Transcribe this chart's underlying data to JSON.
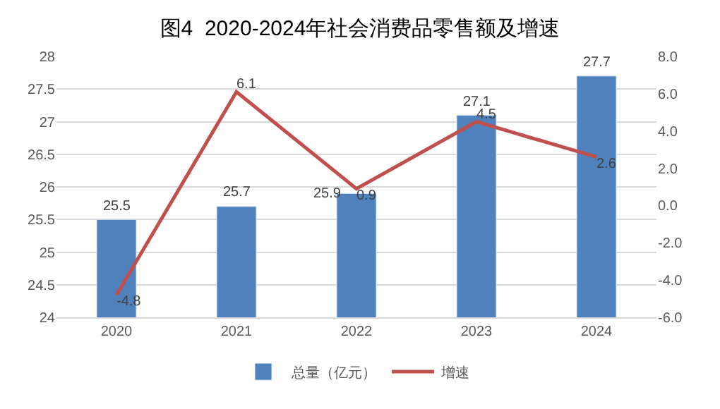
{
  "chart_data": {
    "type": "bar",
    "title": "图4  2020-2024年社会消费品零售额及增速",
    "categories": [
      "2020",
      "2021",
      "2022",
      "2023",
      "2024"
    ],
    "series": [
      {
        "name": "总量（亿元）",
        "color": "#4f81bd",
        "values": [
          25.5,
          25.7,
          25.9,
          27.1,
          27.7
        ]
      },
      {
        "name": "增速",
        "type": "line",
        "axis": "y2",
        "color": "#c0504d",
        "values": [
          -4.8,
          6.1,
          0.9,
          4.5,
          2.6
        ]
      }
    ],
    "ylim": [
      24,
      28
    ],
    "yticks": [
      24,
      24.5,
      25,
      25.5,
      26,
      26.5,
      27,
      27.5,
      28
    ],
    "y2lim": [
      -6,
      8
    ],
    "y2ticks": [
      {
        "value": -6,
        "label": "-6.0"
      },
      {
        "value": -4,
        "label": "-4.0"
      },
      {
        "value": -2,
        "label": "-2.0"
      },
      {
        "value": 0,
        "label": "0.0"
      },
      {
        "value": 2,
        "label": "2.0"
      },
      {
        "value": 4,
        "label": "4.0"
      },
      {
        "value": 6,
        "label": "6.0"
      },
      {
        "value": 8,
        "label": "8.0"
      }
    ],
    "data_labels": true,
    "grid": "y",
    "legend": "bottom",
    "line_style": "solid",
    "marker": "none"
  }
}
